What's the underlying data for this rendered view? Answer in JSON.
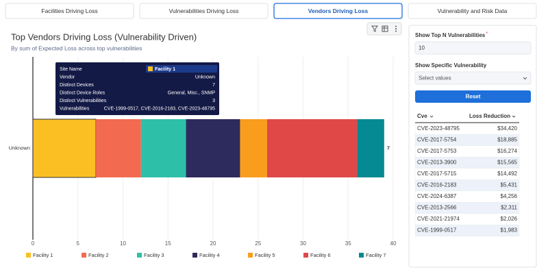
{
  "tabs": [
    "Facilities Driving Loss",
    "Vulnerabilities Driving Loss",
    "Vendors Driving Loss",
    "Vulnerability and Risk Data"
  ],
  "active_tab": 2,
  "chart_data": {
    "type": "bar",
    "orientation": "horizontal",
    "stacked": true,
    "title": "Top Vendors Driving Loss (Vulnerability Driven)",
    "subtitle": "By sum of Expected Loss across top vulnerabilities",
    "categories": [
      "Unknown"
    ],
    "series": [
      {
        "name": "Facility 1",
        "color": "#fbbf24",
        "values": [
          7
        ]
      },
      {
        "name": "Facility 2",
        "color": "#f26b50",
        "values": [
          5
        ]
      },
      {
        "name": "Facility 3",
        "color": "#2ebfa8",
        "values": [
          5
        ]
      },
      {
        "name": "Facility 4",
        "color": "#2d2a5e",
        "values": [
          6
        ]
      },
      {
        "name": "Facility 5",
        "color": "#f99d1c",
        "values": [
          3
        ]
      },
      {
        "name": "Facility 6",
        "color": "#e04848",
        "values": [
          10
        ]
      },
      {
        "name": "Facility 7",
        "color": "#058a93",
        "values": [
          3
        ]
      }
    ],
    "bar_end_labels": [
      "7"
    ],
    "xlim": [
      0,
      40
    ],
    "xticks": [
      0,
      5,
      10,
      15,
      20,
      25,
      30,
      35,
      40
    ],
    "grid": true,
    "legend": "bottom"
  },
  "tooltip": {
    "rows": [
      {
        "label": "Site Name",
        "value": "Facility 1"
      },
      {
        "label": "Vendor",
        "value": "Unknown"
      },
      {
        "label": "Distinct Devices",
        "value": "7"
      },
      {
        "label": "Distinct Device Roles",
        "value": "General, Misc., SNMP"
      },
      {
        "label": "Distinct Vulnerabilities",
        "value": "3"
      },
      {
        "label": "Vulnerabilities",
        "value": "CVE-1999-0517, CVE-2016-2183, CVE-2023-48795"
      }
    ]
  },
  "filters": {
    "top_n_label": "Show Top N Vulnerabilities",
    "required_mark": "*",
    "top_n_value": "10",
    "specific_label": "Show Specific Vulnerability",
    "specific_placeholder": "Select values",
    "reset": "Reset"
  },
  "table": {
    "columns": [
      "Cve",
      "Loss Reduction"
    ],
    "rows": [
      [
        "CVE-2023-48795",
        "$34,420"
      ],
      [
        "CVE-2017-5754",
        "$18,885"
      ],
      [
        "CVE-2017-5753",
        "$16,274"
      ],
      [
        "CVE-2013-3900",
        "$15,565"
      ],
      [
        "CVE-2017-5715",
        "$14,492"
      ],
      [
        "CVE-2016-2183",
        "$5,431"
      ],
      [
        "CVE-2024-6387",
        "$4,256"
      ],
      [
        "CVE-2013-2566",
        "$2,311"
      ],
      [
        "CVE-2021-21974",
        "$2,026"
      ],
      [
        "CVE-1999-0517",
        "$1,983"
      ]
    ]
  }
}
